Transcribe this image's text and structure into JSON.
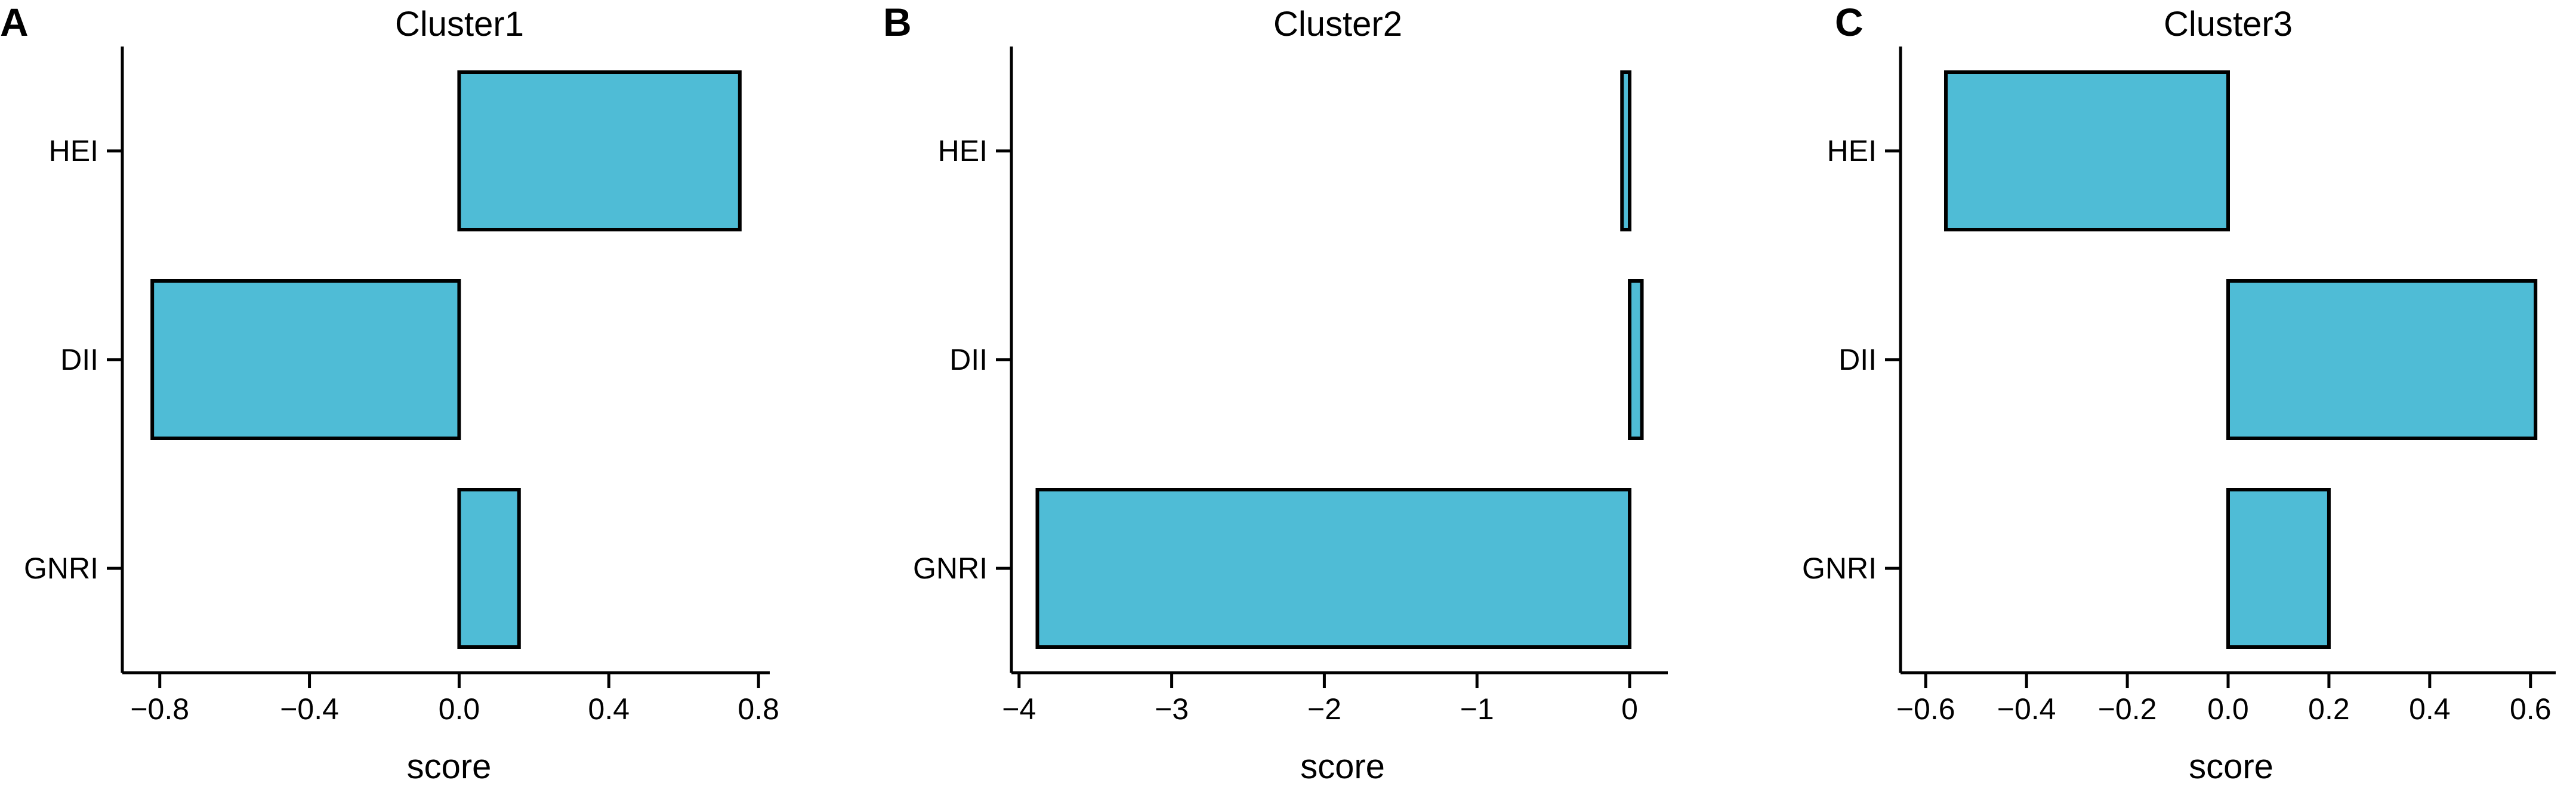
{
  "chart_data": [
    {
      "type": "bar",
      "orientation": "horizontal",
      "panel": "A",
      "title": "Cluster1",
      "xlabel": "score",
      "ylabel": "",
      "categories": [
        "HEI",
        "DII",
        "GNRI"
      ],
      "values": [
        0.75,
        -0.82,
        0.16
      ],
      "xlim": [
        -0.9,
        0.83
      ],
      "xticks": [
        -0.8,
        -0.4,
        0.0,
        0.4,
        0.8
      ],
      "xtick_labels": [
        "−0.8",
        "−0.4",
        "0.0",
        "0.4",
        "0.8"
      ],
      "grid": false,
      "bar_color": "#4FBCD6"
    },
    {
      "type": "bar",
      "orientation": "horizontal",
      "panel": "B",
      "title": "Cluster2",
      "xlabel": "score",
      "ylabel": "",
      "categories": [
        "HEI",
        "DII",
        "GNRI"
      ],
      "values": [
        -0.05,
        0.08,
        -3.88
      ],
      "xlim": [
        -4.05,
        0.25
      ],
      "xticks": [
        -4,
        -3,
        -2,
        -1,
        0
      ],
      "xtick_labels": [
        "−4",
        "−3",
        "−2",
        "−1",
        "0"
      ],
      "grid": false,
      "bar_color": "#4FBCD6"
    },
    {
      "type": "bar",
      "orientation": "horizontal",
      "panel": "C",
      "title": "Cluster3",
      "xlabel": "score",
      "ylabel": "",
      "categories": [
        "HEI",
        "DII",
        "GNRI"
      ],
      "values": [
        -0.56,
        0.61,
        0.2
      ],
      "xlim": [
        -0.65,
        0.65
      ],
      "xticks": [
        -0.6,
        -0.4,
        -0.2,
        0.0,
        0.2,
        0.4,
        0.6
      ],
      "xtick_labels": [
        "−0.6",
        "−0.4",
        "−0.2",
        "0.0",
        "0.2",
        "0.4",
        "0.6"
      ],
      "grid": false,
      "bar_color": "#4FBCD6"
    }
  ]
}
